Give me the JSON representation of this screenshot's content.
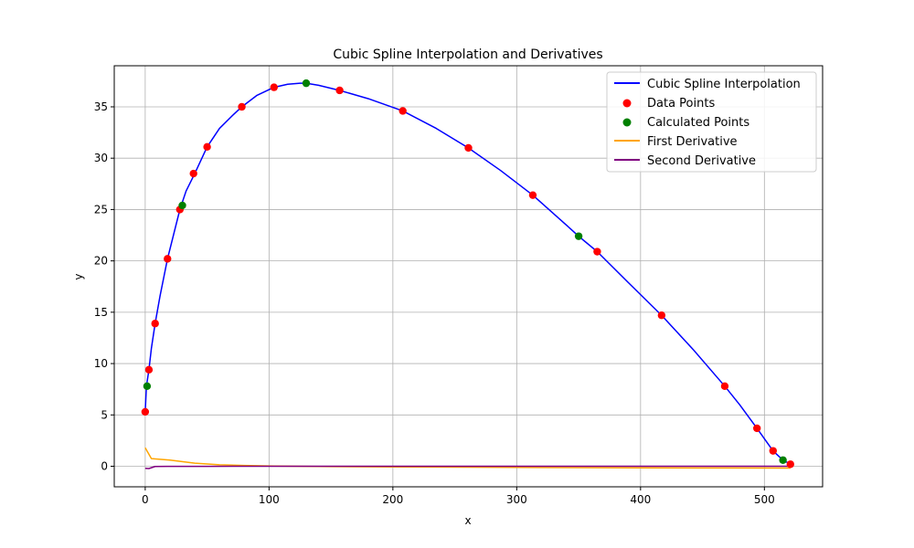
{
  "chart_data": {
    "type": "line",
    "title": "Cubic Spline Interpolation and Derivatives",
    "xlabel": "x",
    "ylabel": "y",
    "xlim": [
      -25,
      547
    ],
    "ylim": [
      -2,
      39
    ],
    "xticks": [
      0,
      100,
      200,
      300,
      400,
      500
    ],
    "yticks": [
      0,
      5,
      10,
      15,
      20,
      25,
      30,
      35
    ],
    "grid": true,
    "legend_position": "top-right",
    "series": [
      {
        "name": "Cubic Spline Interpolation",
        "kind": "line",
        "color": "#0000ff",
        "x": [
          0,
          1,
          3,
          5,
          8,
          12,
          18,
          23,
          28,
          33,
          40,
          50,
          60,
          70,
          78,
          90,
          104,
          115,
          125,
          130,
          140,
          157,
          180,
          208,
          235,
          261,
          287,
          313,
          340,
          350,
          365,
          390,
          417,
          443,
          468,
          480,
          494,
          507,
          515,
          521
        ],
        "y": [
          5.3,
          7.8,
          9.4,
          11.5,
          13.9,
          16.6,
          20.2,
          22.6,
          25.0,
          26.8,
          28.5,
          31.1,
          32.9,
          34.1,
          35.0,
          36.1,
          36.9,
          37.2,
          37.3,
          37.3,
          37.1,
          36.6,
          35.8,
          34.6,
          32.9,
          31.0,
          28.8,
          26.4,
          23.5,
          22.4,
          20.9,
          17.9,
          14.7,
          11.3,
          7.8,
          6.0,
          3.7,
          1.5,
          0.6,
          0.2
        ]
      },
      {
        "name": "Data Points",
        "kind": "scatter",
        "color": "#ff0000",
        "x": [
          0,
          3,
          8,
          18,
          28,
          39,
          50,
          78,
          104,
          157,
          208,
          261,
          313,
          365,
          417,
          468,
          494,
          507,
          521
        ],
        "y": [
          5.3,
          9.4,
          13.9,
          20.2,
          25.0,
          28.5,
          31.1,
          35.0,
          36.9,
          36.6,
          34.6,
          31.0,
          26.4,
          20.9,
          14.7,
          7.8,
          3.7,
          1.5,
          0.2
        ]
      },
      {
        "name": "Calculated Points",
        "kind": "scatter",
        "color": "#008000",
        "x": [
          1.5,
          30,
          130,
          350,
          515
        ],
        "y": [
          7.8,
          25.4,
          37.3,
          22.4,
          0.6
        ]
      },
      {
        "name": "First Derivative",
        "kind": "line",
        "color": "#ffa500",
        "x": [
          0,
          5,
          20,
          40,
          60,
          80,
          104,
          150,
          200,
          260,
          320,
          400,
          470,
          521
        ],
        "y": [
          1.8,
          0.75,
          0.6,
          0.3,
          0.15,
          0.08,
          0.02,
          -0.03,
          -0.06,
          -0.09,
          -0.12,
          -0.15,
          -0.17,
          -0.18
        ]
      },
      {
        "name": "Second Derivative",
        "kind": "line",
        "color": "#800080",
        "x": [
          0,
          3,
          8,
          18,
          50,
          104,
          208,
          313,
          417,
          521
        ],
        "y": [
          -0.2,
          -0.22,
          -0.02,
          -0.01,
          -0.005,
          -0.002,
          -0.001,
          -0.001,
          -0.001,
          -0.001
        ]
      }
    ]
  }
}
